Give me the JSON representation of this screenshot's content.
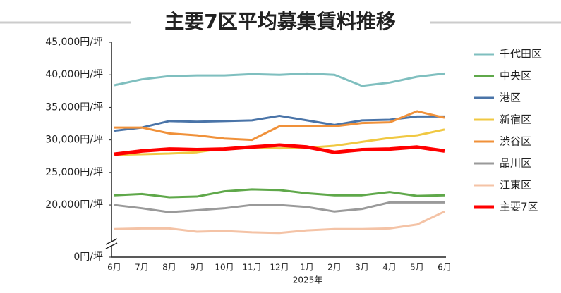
{
  "chart_data": {
    "type": "line",
    "title": "主要7区平均募集賃料推移",
    "xlabel": "2025年",
    "categories": [
      "6月",
      "7月",
      "8月",
      "9月",
      "10月",
      "11月",
      "12月",
      "1月",
      "2月",
      "3月",
      "4月",
      "5月",
      "6月"
    ],
    "ylim": [
      12000,
      45000
    ],
    "y_break": true,
    "yticks": [
      {
        "value": 0,
        "label": "0円/坪"
      },
      {
        "value": 20000,
        "label": "20,000円/坪"
      },
      {
        "value": 25000,
        "label": "25,000円/坪"
      },
      {
        "value": 30000,
        "label": "30,000円/坪"
      },
      {
        "value": 35000,
        "label": "35,000円/坪"
      },
      {
        "value": 40000,
        "label": "40,000円/坪"
      },
      {
        "value": 45000,
        "label": "45,000円/坪"
      }
    ],
    "legend": "right",
    "series": [
      {
        "name": "千代田区",
        "color": "#7fbfbf",
        "width": 3,
        "values": [
          38400,
          39300,
          39800,
          39900,
          39900,
          40100,
          40000,
          40200,
          40000,
          38300,
          38800,
          39700,
          40200
        ]
      },
      {
        "name": "中央区",
        "color": "#5fa84a",
        "width": 3,
        "values": [
          21500,
          21700,
          21200,
          21300,
          22100,
          22400,
          22300,
          21800,
          21500,
          21500,
          22000,
          21400,
          21500
        ]
      },
      {
        "name": "港区",
        "color": "#4a74a8",
        "width": 3,
        "values": [
          31400,
          31900,
          32900,
          32800,
          32900,
          33000,
          33700,
          33000,
          32300,
          33000,
          33100,
          33600,
          33600
        ]
      },
      {
        "name": "新宿区",
        "color": "#f0c842",
        "width": 3,
        "values": [
          27700,
          27800,
          27900,
          28100,
          28700,
          28800,
          28700,
          28800,
          29100,
          29700,
          30300,
          30700,
          31600
        ]
      },
      {
        "name": "渋谷区",
        "color": "#f0913a",
        "width": 3,
        "values": [
          31900,
          31900,
          31000,
          30700,
          30200,
          30000,
          32100,
          32100,
          32100,
          32600,
          32700,
          34400,
          33400
        ]
      },
      {
        "name": "品川区",
        "color": "#9a9a9a",
        "width": 3,
        "values": [
          20000,
          19500,
          18900,
          19200,
          19500,
          20000,
          20000,
          19700,
          19000,
          19400,
          20400,
          20400,
          20400
        ]
      },
      {
        "name": "江東区",
        "color": "#f4c3a6",
        "width": 3,
        "values": [
          16300,
          16400,
          16400,
          15900,
          16000,
          15800,
          15700,
          16100,
          16300,
          16300,
          16400,
          17000,
          19000
        ]
      },
      {
        "name": "主要7区",
        "color": "#ff0000",
        "width": 5,
        "values": [
          27800,
          28300,
          28600,
          28500,
          28600,
          28900,
          29200,
          28900,
          28100,
          28500,
          28600,
          28900,
          28300
        ]
      }
    ]
  }
}
